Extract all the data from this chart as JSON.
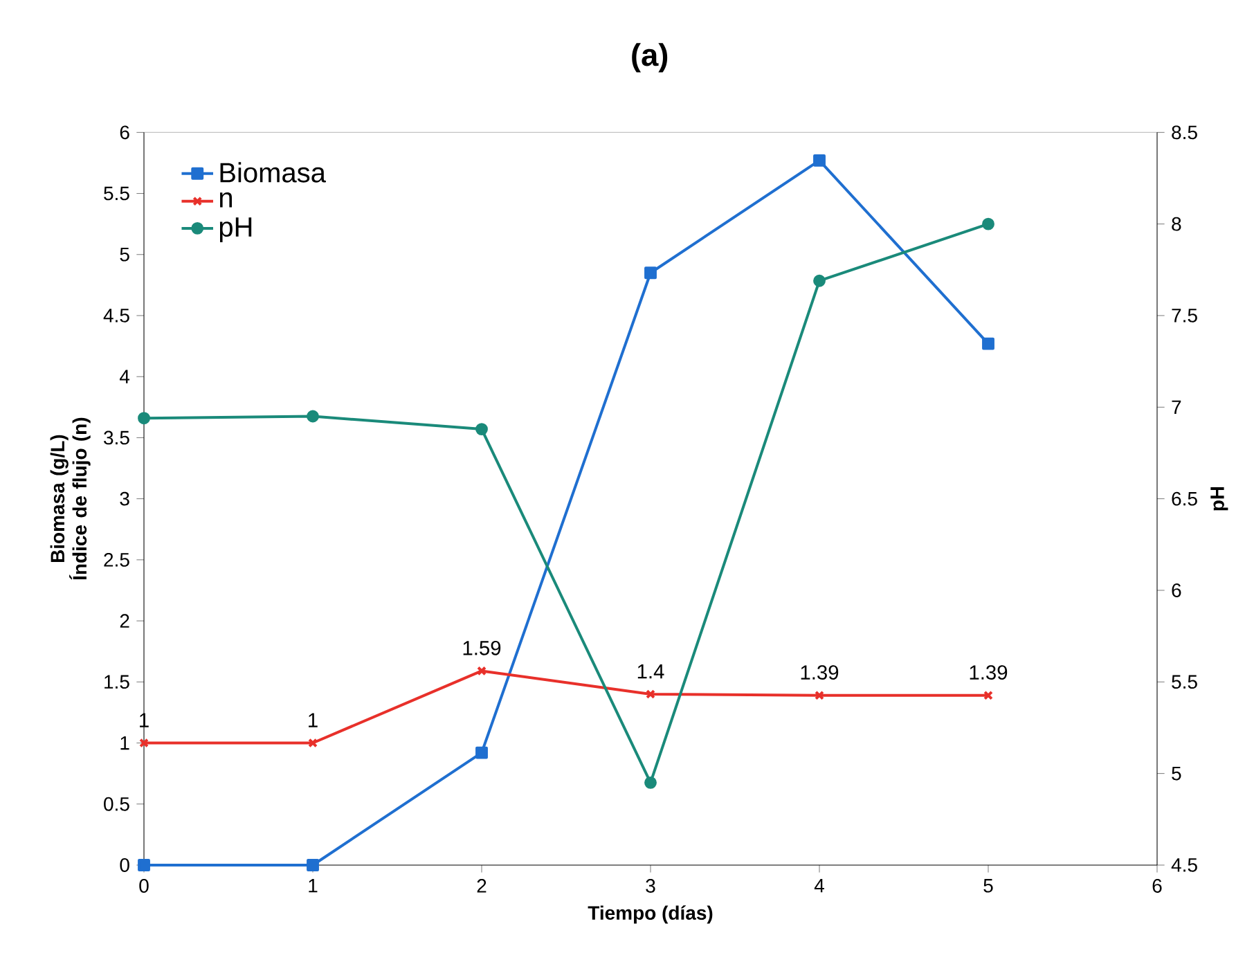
{
  "chart_data": {
    "type": "line",
    "title": "(a)",
    "xlabel": "Tiempo (días)",
    "ylabel": "Biomasa (g/L) Índice de flujo (n)",
    "y2label": "pH",
    "x": [
      0,
      1,
      2,
      3,
      4,
      5
    ],
    "series": [
      {
        "name": "Biomasa",
        "color": "#1f6fd0",
        "marker": "square",
        "values": [
          0,
          0,
          0.92,
          4.85,
          5.77,
          4.27
        ]
      },
      {
        "name": "n",
        "color": "#e8302a",
        "marker": "cross",
        "values": [
          1,
          1,
          1.59,
          1.4,
          1.39,
          1.39
        ],
        "value_labels": [
          "1",
          "1",
          "1.59",
          "1.4",
          "1.39",
          "1.39"
        ]
      },
      {
        "name": "pH",
        "color": "#1a8a7a",
        "marker": "circle",
        "axis": "y2",
        "values": [
          6.94,
          6.95,
          6.88,
          4.95,
          7.69,
          8.0
        ]
      }
    ],
    "xlim": [
      0,
      6
    ],
    "xticks": [
      0,
      1,
      2,
      3,
      4,
      5,
      6
    ],
    "ylim": [
      0,
      6
    ],
    "yticks": [
      0,
      0.5,
      1,
      1.5,
      2,
      2.5,
      3,
      3.5,
      4,
      4.5,
      5,
      5.5,
      6
    ],
    "y2lim": [
      4.5,
      8.5
    ],
    "y2ticks": [
      4.5,
      5,
      5.5,
      6,
      6.5,
      7,
      7.5,
      8,
      8.5
    ],
    "legend": "top left",
    "grid": false
  }
}
